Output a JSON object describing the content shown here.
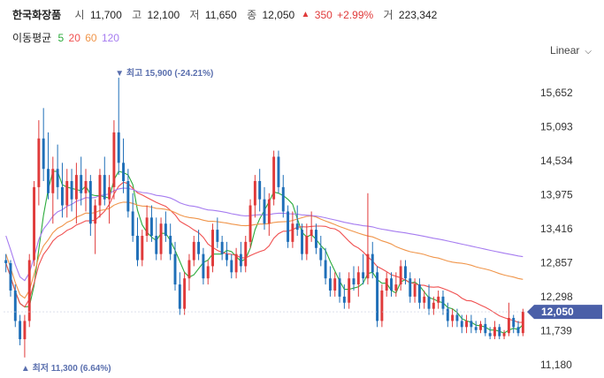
{
  "header": {
    "stock_name": "한국화장품",
    "open_label": "시",
    "open_value": "11,700",
    "high_label": "고",
    "high_value": "12,100",
    "low_label": "저",
    "low_value": "11,650",
    "close_label": "종",
    "close_value": "12,050",
    "change_arrow": "▲",
    "change_value": "350",
    "change_pct": "+2.99%",
    "volume_label": "거",
    "volume_value": "223,342"
  },
  "ma_legend": {
    "title": "이동평균",
    "ma5": "5",
    "ma20": "20",
    "ma60": "60",
    "ma120": "120"
  },
  "scale_select": {
    "value": "Linear"
  },
  "colors": {
    "up": "#e03a3a",
    "down": "#1f6fb8",
    "ma5": "#2bab3b",
    "ma20": "#f05050",
    "ma60": "#f0954a",
    "ma120": "#a67cf0",
    "price_tag": "#4a5fa8",
    "annotation": "#5a6fae"
  },
  "chart_data": {
    "type": "candlestick",
    "y_ticks": [
      "15,652",
      "15,093",
      "14,534",
      "13,975",
      "13,416",
      "12,857",
      "12,298",
      "11,739",
      "11,180"
    ],
    "ylim": [
      11180,
      16100
    ],
    "last_price_label": "12,050",
    "high_annotation": {
      "arrow": "▼",
      "label": "최고",
      "value": "15,900 (-24.21%)",
      "price": 15900
    },
    "low_annotation": {
      "arrow": "▲",
      "label": "최저",
      "value": "11,300 (6.64%)",
      "price": 11300
    },
    "candles": [
      [
        12900,
        13000,
        12700,
        12850
      ],
      [
        12850,
        12900,
        12300,
        12400
      ],
      [
        12400,
        12500,
        11800,
        11900
      ],
      [
        11900,
        12000,
        11500,
        11600
      ],
      [
        11600,
        12000,
        11300,
        11900
      ],
      [
        11900,
        13000,
        11800,
        12900
      ],
      [
        12900,
        14200,
        12800,
        14100
      ],
      [
        14100,
        15200,
        13800,
        14900
      ],
      [
        14900,
        15400,
        14200,
        14400
      ],
      [
        14400,
        15000,
        13900,
        14000
      ],
      [
        14000,
        14600,
        13500,
        14400
      ],
      [
        14400,
        14800,
        13900,
        14100
      ],
      [
        14100,
        14500,
        13600,
        13800
      ],
      [
        13800,
        14400,
        13600,
        14200
      ],
      [
        14200,
        14400,
        13700,
        13900
      ],
      [
        13900,
        14500,
        13500,
        14300
      ],
      [
        14300,
        14600,
        13800,
        14000
      ],
      [
        14000,
        14400,
        13700,
        14200
      ],
      [
        14200,
        14300,
        13300,
        13500
      ],
      [
        13500,
        13900,
        13000,
        13800
      ],
      [
        13800,
        14400,
        13600,
        14300
      ],
      [
        14300,
        14600,
        13800,
        13900
      ],
      [
        13900,
        14300,
        13500,
        14100
      ],
      [
        14100,
        15200,
        13900,
        15000
      ],
      [
        15000,
        15900,
        14300,
        14500
      ],
      [
        14500,
        14900,
        14000,
        14200
      ],
      [
        14200,
        14400,
        13600,
        13700
      ],
      [
        13700,
        14000,
        13200,
        13300
      ],
      [
        13300,
        13600,
        12800,
        12900
      ],
      [
        12900,
        13400,
        12800,
        13300
      ],
      [
        13300,
        13800,
        13200,
        13600
      ],
      [
        13600,
        13800,
        13200,
        13300
      ],
      [
        13300,
        13600,
        12900,
        13000
      ],
      [
        13000,
        13600,
        12900,
        13500
      ],
      [
        13500,
        13700,
        13200,
        13300
      ],
      [
        13300,
        13500,
        12900,
        13000
      ],
      [
        13000,
        13200,
        12400,
        12500
      ],
      [
        12500,
        12700,
        12000,
        12100
      ],
      [
        12100,
        12700,
        12000,
        12600
      ],
      [
        12600,
        13000,
        12400,
        12900
      ],
      [
        12900,
        13300,
        12800,
        13200
      ],
      [
        13200,
        13400,
        12900,
        13000
      ],
      [
        13000,
        13100,
        12500,
        12600
      ],
      [
        12600,
        12900,
        12500,
        12800
      ],
      [
        12800,
        13500,
        12700,
        13400
      ],
      [
        13400,
        13600,
        13100,
        13200
      ],
      [
        13200,
        13300,
        12900,
        13000
      ],
      [
        13000,
        13200,
        12800,
        12900
      ],
      [
        12900,
        13000,
        12600,
        12700
      ],
      [
        12700,
        13100,
        12600,
        13000
      ],
      [
        13000,
        13200,
        12700,
        12800
      ],
      [
        12800,
        13300,
        12700,
        13200
      ],
      [
        13200,
        13900,
        13100,
        13800
      ],
      [
        13800,
        14300,
        13600,
        14200
      ],
      [
        14200,
        14400,
        13700,
        13900
      ],
      [
        13900,
        14100,
        13400,
        13500
      ],
      [
        13500,
        14000,
        13300,
        13900
      ],
      [
        13900,
        14700,
        13800,
        14600
      ],
      [
        14600,
        14700,
        14000,
        14100
      ],
      [
        14100,
        14300,
        13600,
        13700
      ],
      [
        13700,
        13800,
        13100,
        13200
      ],
      [
        13200,
        13700,
        13100,
        13500
      ],
      [
        13500,
        13800,
        13300,
        13400
      ],
      [
        13400,
        13500,
        12900,
        13000
      ],
      [
        13000,
        13500,
        12900,
        13300
      ],
      [
        13300,
        13700,
        13200,
        13400
      ],
      [
        13400,
        13500,
        13000,
        13100
      ],
      [
        13100,
        13300,
        12800,
        12900
      ],
      [
        12900,
        13100,
        12500,
        12600
      ],
      [
        12600,
        12800,
        12300,
        12400
      ],
      [
        12400,
        12700,
        12300,
        12600
      ],
      [
        12600,
        12700,
        12200,
        12300
      ],
      [
        12300,
        12500,
        12100,
        12200
      ],
      [
        12200,
        12700,
        12100,
        12600
      ],
      [
        12600,
        12800,
        12400,
        12500
      ],
      [
        12500,
        12800,
        12300,
        12700
      ],
      [
        12700,
        13000,
        12500,
        12600
      ],
      [
        12600,
        14000,
        12500,
        13000
      ],
      [
        13000,
        13200,
        12600,
        12700
      ],
      [
        12700,
        12800,
        11800,
        11900
      ],
      [
        11900,
        12500,
        11800,
        12400
      ],
      [
        12400,
        12700,
        12300,
        12600
      ],
      [
        12600,
        12700,
        12300,
        12400
      ],
      [
        12400,
        12700,
        12300,
        12500
      ],
      [
        12500,
        12900,
        12400,
        12800
      ],
      [
        12800,
        12900,
        12500,
        12600
      ],
      [
        12600,
        12700,
        12200,
        12300
      ],
      [
        12300,
        12600,
        12200,
        12500
      ],
      [
        12500,
        12600,
        12100,
        12200
      ],
      [
        12200,
        12400,
        12100,
        12300
      ],
      [
        12300,
        12500,
        12000,
        12100
      ],
      [
        12100,
        12300,
        12000,
        12200
      ],
      [
        12200,
        12400,
        12100,
        12300
      ],
      [
        12300,
        12400,
        12000,
        12100
      ],
      [
        12100,
        12200,
        11800,
        11900
      ],
      [
        11900,
        12100,
        11800,
        12000
      ],
      [
        12000,
        12100,
        11800,
        11900
      ],
      [
        11900,
        12000,
        11700,
        11800
      ],
      [
        11800,
        12000,
        11700,
        11900
      ],
      [
        11900,
        12000,
        11700,
        11800
      ],
      [
        11800,
        11900,
        11700,
        11750
      ],
      [
        11750,
        11900,
        11700,
        11850
      ],
      [
        11850,
        11950,
        11650,
        11700
      ],
      [
        11700,
        11800,
        11600,
        11650
      ],
      [
        11650,
        11900,
        11600,
        11800
      ],
      [
        11800,
        11850,
        11600,
        11650
      ],
      [
        11650,
        11750,
        11600,
        11700
      ],
      [
        11700,
        12200,
        11650,
        11950
      ],
      [
        11950,
        12000,
        11700,
        11800
      ],
      [
        11800,
        11900,
        11650,
        11700
      ],
      [
        11700,
        12100,
        11650,
        12050
      ]
    ]
  }
}
